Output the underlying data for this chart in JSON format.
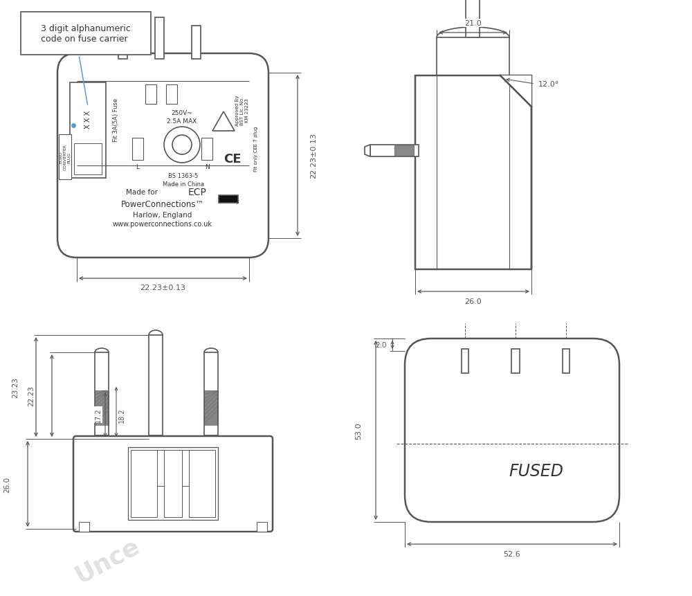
{
  "bg_color": "#ffffff",
  "lc": "#555555",
  "lw": 1.2,
  "dc": "#555555",
  "tc": "#333333",
  "ann_color": "#5b9bd5",
  "annotation_text": "3 digit alphanumeric\ncode on fuse carrier",
  "dim_21": "21.0",
  "dim_26_side": "26.0",
  "dim_22_23_h": "22.23±0.13",
  "dim_22_23_w": "22.23±0.13",
  "dim_17_2": "17.2",
  "dim_18_2": "18.2",
  "dim_22_23_pins1": "22.23",
  "dim_23_23_pins2": "23.23",
  "dim_26_body": "26.0",
  "dim_52_6": "52.6",
  "dim_53": "53.0",
  "dim_2": "2.0",
  "dim_12deg": "12.0°",
  "label_fused": "FUSED",
  "watermark": "Unce"
}
